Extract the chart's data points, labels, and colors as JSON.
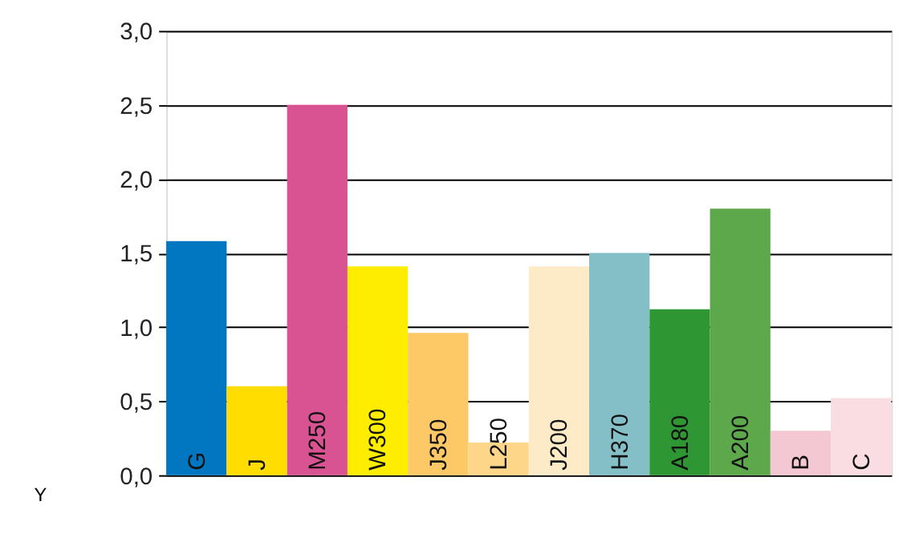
{
  "chart_data": {
    "type": "bar",
    "ylabel": "Y",
    "categories": [
      "G",
      "J",
      "M250",
      "W300",
      "J350",
      "L250",
      "J200",
      "H370",
      "A180",
      "A200",
      "B",
      "C"
    ],
    "values": [
      1.58,
      0.6,
      2.5,
      1.41,
      0.96,
      0.22,
      1.41,
      1.5,
      1.12,
      1.8,
      0.3,
      0.52
    ],
    "colors": [
      "#0077c0",
      "#ffdd00",
      "#d95393",
      "#ffed00",
      "#fdc966",
      "#fdd68a",
      "#fdebc8",
      "#84bfc8",
      "#2e9632",
      "#5ea84c",
      "#f3c8d2",
      "#fadde3"
    ],
    "ylim": [
      0,
      3
    ],
    "yticks": [
      {
        "value": 0,
        "label": "0,0"
      },
      {
        "value": 0.5,
        "label": "0,5"
      },
      {
        "value": 1,
        "label": "1,0"
      },
      {
        "value": 1.5,
        "label": "1,5"
      },
      {
        "value": 2,
        "label": "2,0"
      },
      {
        "value": 2.5,
        "label": "2,5"
      },
      {
        "value": 3,
        "label": "3,0"
      }
    ],
    "grid": "y",
    "legend": false
  }
}
